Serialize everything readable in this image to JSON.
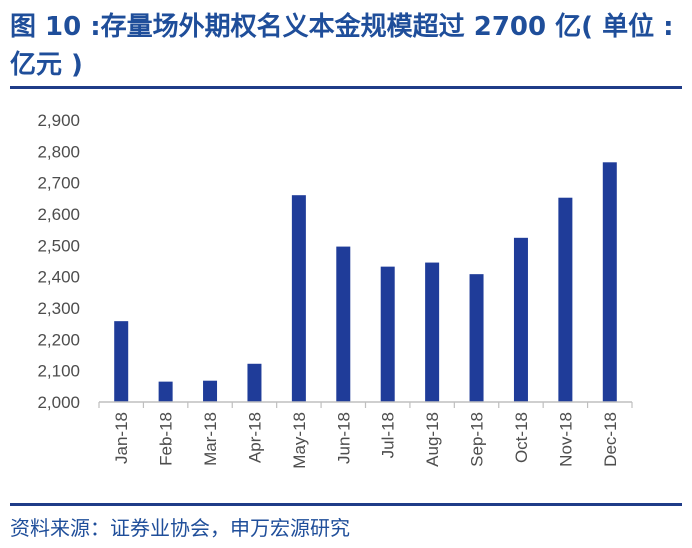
{
  "title": "图 10 :存量场外期权名义本金规模超过 2700 亿( 单位 : 亿元 )",
  "source": "资料来源：证券业协会，申万宏源研究",
  "colors": {
    "bar": "#1f3c99",
    "title": "#1f4e9a",
    "rule": "#1f3c88",
    "axis": "#bfbfbf"
  },
  "chart_data": {
    "type": "bar",
    "categories": [
      "Jan-18",
      "Feb-18",
      "Mar-18",
      "Apr-18",
      "May-18",
      "Jun-18",
      "Jul-18",
      "Aug-18",
      "Sep-18",
      "Oct-18",
      "Nov-18",
      "Dec-18"
    ],
    "values": [
      2258,
      2065,
      2068,
      2122,
      2660,
      2496,
      2432,
      2445,
      2408,
      2524,
      2652,
      2765
    ],
    "ylim": [
      2000,
      2900
    ],
    "yticks": [
      2000,
      2100,
      2200,
      2300,
      2400,
      2500,
      2600,
      2700,
      2800,
      2900
    ],
    "ytick_labels": [
      "2,000",
      "2,100",
      "2,200",
      "2,300",
      "2,400",
      "2,500",
      "2,600",
      "2,700",
      "2,800",
      "2,900"
    ],
    "grid": false,
    "legend": "none"
  }
}
